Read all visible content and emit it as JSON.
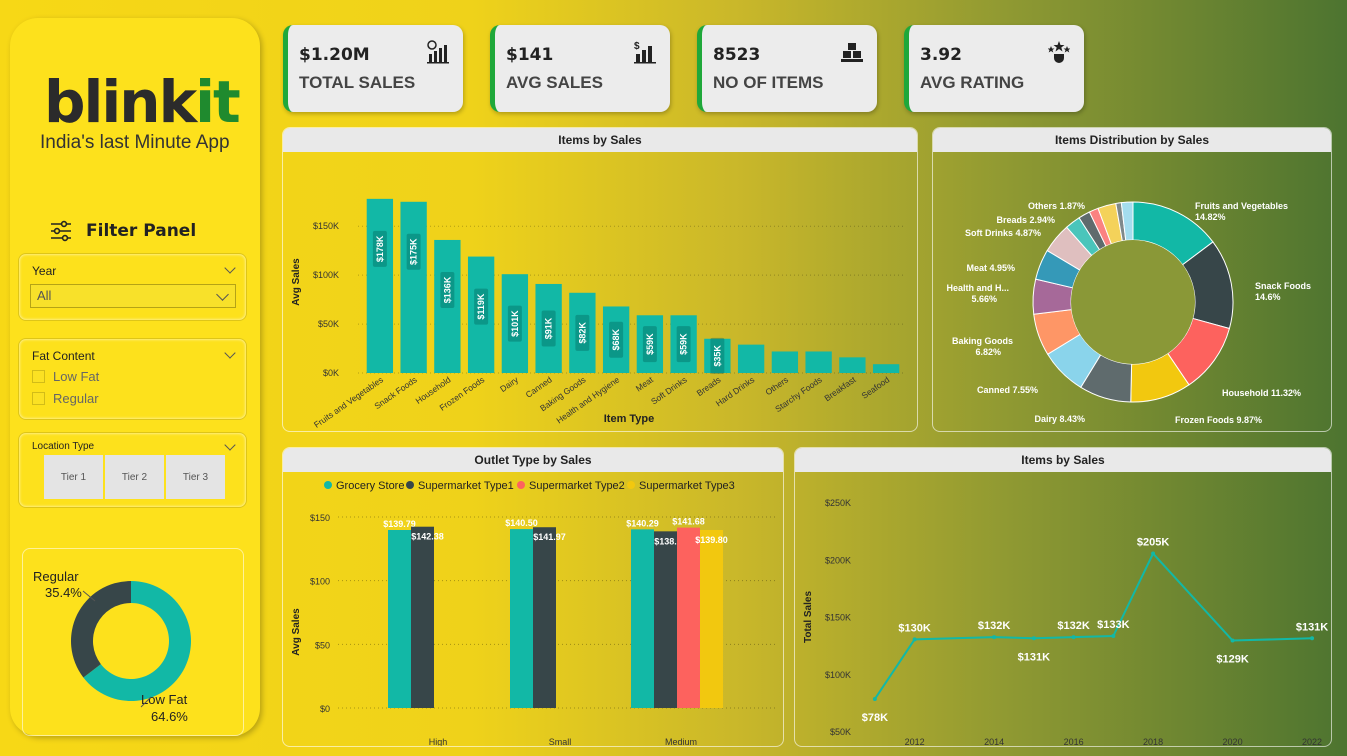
{
  "brand": {
    "name_a": "blink",
    "name_b": "it",
    "tagline": "India's last Minute App"
  },
  "filter": {
    "title": "Filter Panel",
    "year": {
      "label": "Year",
      "value": "All"
    },
    "fat": {
      "label": "Fat Content",
      "options": [
        "Low Fat",
        "Regular"
      ]
    },
    "location": {
      "label": "Location Type",
      "options": [
        "Tier 1",
        "Tier 2",
        "Tier 3"
      ]
    }
  },
  "kpis": [
    {
      "value": "$1.20M",
      "label": "TOTAL SALES",
      "icon": "sales-chart-icon"
    },
    {
      "value": "$141",
      "label": "AVG SALES",
      "icon": "dollar-bars-icon"
    },
    {
      "value": "8523",
      "label": "NO OF ITEMS",
      "icon": "items-stack-icon"
    },
    {
      "value": "3.92",
      "label": "AVG RATING",
      "icon": "rating-stars-icon"
    }
  ],
  "colors": {
    "teal": "#12b8a6",
    "dark": "#374649",
    "red": "#fd625e",
    "yellow": "#f2c80f"
  },
  "chart_data": [
    {
      "type": "bar",
      "title": "Items by Sales",
      "xlabel": "Item Type",
      "ylabel": "Avg Sales",
      "ticks": [
        "$0K",
        "$50K",
        "$100K",
        "$150K"
      ],
      "ylim": [
        0,
        185
      ],
      "categories": [
        "Fruits and Vegetables",
        "Snack Foods",
        "Household",
        "Frozen Foods",
        "Dairy",
        "Canned",
        "Baking Goods",
        "Health and Hygiene",
        "Meat",
        "Soft Drinks",
        "Breads",
        "Hard Drinks",
        "Others",
        "Starchy Foods",
        "Breakfast",
        "Seafood"
      ],
      "values": [
        178,
        175,
        136,
        119,
        101,
        91,
        82,
        68,
        59,
        59,
        35,
        29,
        22,
        22,
        16,
        9
      ],
      "labels": [
        "$178K",
        "$175K",
        "$136K",
        "$119K",
        "$101K",
        "$91K",
        "$82K",
        "$68K",
        "$59K",
        "$59K",
        "$35K",
        "",
        "",
        "",
        "",
        ""
      ]
    },
    {
      "type": "pie",
      "title": "Items Distribution by Sales",
      "slices": [
        {
          "name": "Fruits and Vegetables",
          "label": "Fruits and Vegetables",
          "pct_label": "14.82%",
          "value": 14.82,
          "color": "#12b8a6"
        },
        {
          "name": "Snack Foods",
          "label": "Snack Foods",
          "pct_label": "14.6%",
          "value": 14.6,
          "color": "#374649"
        },
        {
          "name": "Household",
          "label": "Household 11.32%",
          "pct_label": "",
          "value": 11.32,
          "color": "#fd625e"
        },
        {
          "name": "Frozen Foods",
          "label": "Frozen Foods 9.87%",
          "pct_label": "",
          "value": 9.87,
          "color": "#f2c80f"
        },
        {
          "name": "Dairy",
          "label": "Dairy 8.43%",
          "pct_label": "",
          "value": 8.43,
          "color": "#5f6b6d"
        },
        {
          "name": "Canned",
          "label": "Canned 7.55%",
          "pct_label": "",
          "value": 7.55,
          "color": "#8ad4eb"
        },
        {
          "name": "Baking Goods",
          "label": "Baking Goods",
          "pct_label": "6.82%",
          "value": 6.82,
          "color": "#fe9666"
        },
        {
          "name": "Health and H...",
          "label": "Health and H...",
          "pct_label": "5.66%",
          "value": 5.66,
          "color": "#a66999"
        },
        {
          "name": "Meat",
          "label": "Meat 4.95%",
          "pct_label": "",
          "value": 4.95,
          "color": "#3599b8"
        },
        {
          "name": "Soft Drinks",
          "label": "Soft Drinks 4.87%",
          "pct_label": "",
          "value": 4.87,
          "color": "#dfbfbf"
        },
        {
          "name": "Hard Drinks",
          "label": "",
          "pct_label": "",
          "value": 2.5,
          "color": "#4ac5bb"
        },
        {
          "name": "Starchy Foods",
          "label": "",
          "pct_label": "",
          "value": 1.9,
          "color": "#5f6b6d"
        },
        {
          "name": "Breakfast",
          "label": "",
          "pct_label": "",
          "value": 1.5,
          "color": "#fb8281"
        },
        {
          "name": "Breads",
          "label": "Breads 2.94%",
          "pct_label": "",
          "value": 2.94,
          "color": "#f4d25a"
        },
        {
          "name": "Seafood",
          "label": "",
          "pct_label": "",
          "value": 0.9,
          "color": "#7f898a"
        },
        {
          "name": "Others",
          "label": "Others 1.87%",
          "pct_label": "",
          "value": 1.87,
          "color": "#a4ddee"
        }
      ]
    },
    {
      "type": "bar",
      "title": "Outlet Type by Sales",
      "xlabel": "Outlet Type",
      "ylabel": "Avg Sales",
      "ticks": [
        "$0",
        "$50",
        "$100",
        "$150"
      ],
      "ylim": [
        0,
        150
      ],
      "legend": [
        "Grocery Store",
        "Supermarket Type1",
        "Supermarket Type2",
        "Supermarket Type3"
      ],
      "categories": [
        "High",
        "Small",
        "Medium"
      ],
      "series": [
        {
          "name": "Grocery Store",
          "values": [
            139.79,
            140.5,
            140.29
          ],
          "labels": [
            "$139.79",
            "$140.50",
            "$140.29"
          ]
        },
        {
          "name": "Supermarket Type1",
          "values": [
            142.38,
            141.97,
            138.74
          ],
          "labels": [
            "$142.38",
            "$141.97",
            "$138.74"
          ]
        },
        {
          "name": "Supermarket Type2",
          "values": [
            null,
            null,
            141.68
          ],
          "labels": [
            "",
            "",
            "$141.68"
          ]
        },
        {
          "name": "Supermarket Type3",
          "values": [
            null,
            null,
            139.8
          ],
          "labels": [
            "",
            "",
            "$139.80"
          ]
        }
      ]
    },
    {
      "type": "line",
      "title": "Items by Sales",
      "xlabel": "Outlet Establishment Year",
      "ylabel": "Total Sales",
      "yticks": [
        "$50K",
        "$100K",
        "$150K",
        "$200K",
        "$250K"
      ],
      "ylim": [
        50,
        250
      ],
      "xticks": [
        "2012",
        "2014",
        "2016",
        "2018",
        "2020",
        "2022"
      ],
      "x": [
        2011,
        2012,
        2014,
        2015,
        2016,
        2017,
        2018,
        2020,
        2022
      ],
      "y": [
        78,
        130,
        132,
        131,
        132,
        133,
        205,
        129,
        131
      ],
      "labels": [
        "$78K",
        "$130K",
        "$132K",
        "$131K",
        "$132K",
        "$133K",
        "$205K",
        "$129K",
        "$131K"
      ]
    },
    {
      "type": "pie",
      "title": "",
      "slices": [
        {
          "name": "Low Fat",
          "label": "Low Fat",
          "pct_label": "64.6%",
          "value": 64.6,
          "color": "#12b8a6"
        },
        {
          "name": "Regular",
          "label": "Regular",
          "pct_label": "35.4%",
          "value": 35.4,
          "color": "#374649"
        }
      ]
    }
  ]
}
